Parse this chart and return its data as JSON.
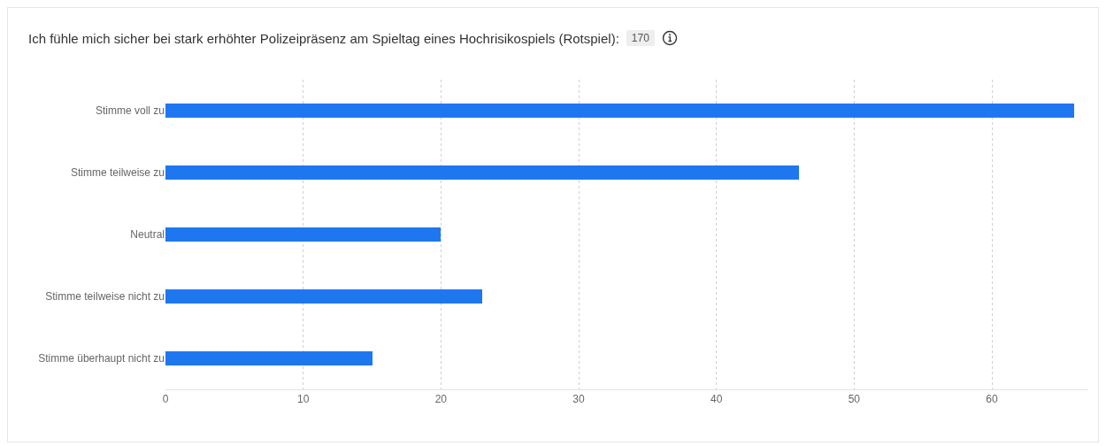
{
  "chart_data": {
    "type": "bar",
    "orientation": "horizontal",
    "title": "Ich fühle mich sicher bei stark erhöhter Polizeipräsenz am Spieltag eines Hochrisikospiels (Rotspiel):",
    "annotations": [
      "170"
    ],
    "categories": [
      "Stimme voll zu",
      "Stimme teilweise zu",
      "Neutral",
      "Stimme teilweise nicht zu",
      "Stimme überhaupt nicht zu"
    ],
    "values": [
      66,
      46,
      20,
      23,
      15
    ],
    "color": "#1f77f0",
    "xlim": [
      0,
      67
    ],
    "xticks": [
      0,
      10,
      20,
      30,
      40,
      50,
      60
    ],
    "grid": "x"
  }
}
